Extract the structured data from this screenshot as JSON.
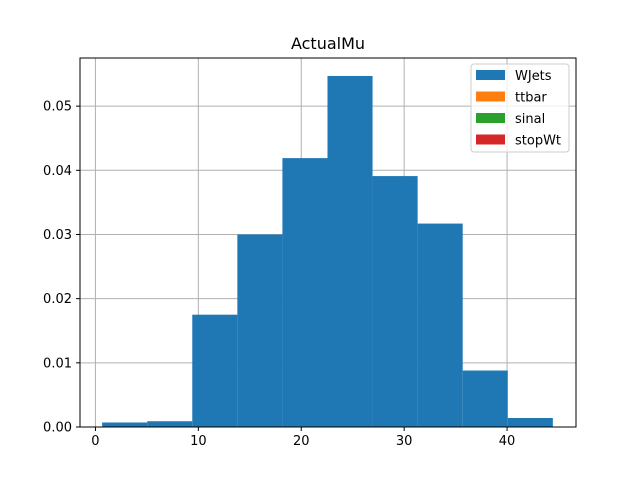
{
  "chart_data": {
    "type": "bar",
    "subtype": "histogram",
    "title": "ActualMu",
    "xlabel": "",
    "ylabel": "",
    "xlim": [
      -1.5,
      46.7
    ],
    "ylim": [
      0,
      0.0575
    ],
    "grid": true,
    "legend_position": "top-right",
    "xticks": [
      0,
      10,
      20,
      30,
      40
    ],
    "xtick_labels": [
      "0",
      "10",
      "20",
      "30",
      "40"
    ],
    "yticks": [
      0,
      0.01,
      0.02,
      0.03,
      0.04,
      0.05
    ],
    "ytick_labels": [
      "0.00",
      "0.01",
      "0.02",
      "0.03",
      "0.04",
      "0.05"
    ],
    "bin_edges": [
      0.65,
      5.03,
      9.41,
      13.79,
      18.17,
      22.55,
      26.93,
      31.31,
      35.69,
      40.07,
      44.45
    ],
    "series": [
      {
        "name": "WJets",
        "color": "#1f77b4",
        "values": [
          0.0007,
          0.0009,
          0.0175,
          0.03,
          0.0419,
          0.0547,
          0.0391,
          0.0317,
          0.0088,
          0.0014
        ]
      },
      {
        "name": "ttbar",
        "color": "#ff7f0e",
        "values": []
      },
      {
        "name": "sinal",
        "color": "#2ca02c",
        "values": []
      },
      {
        "name": "stopWt",
        "color": "#d62728",
        "values": []
      }
    ]
  }
}
